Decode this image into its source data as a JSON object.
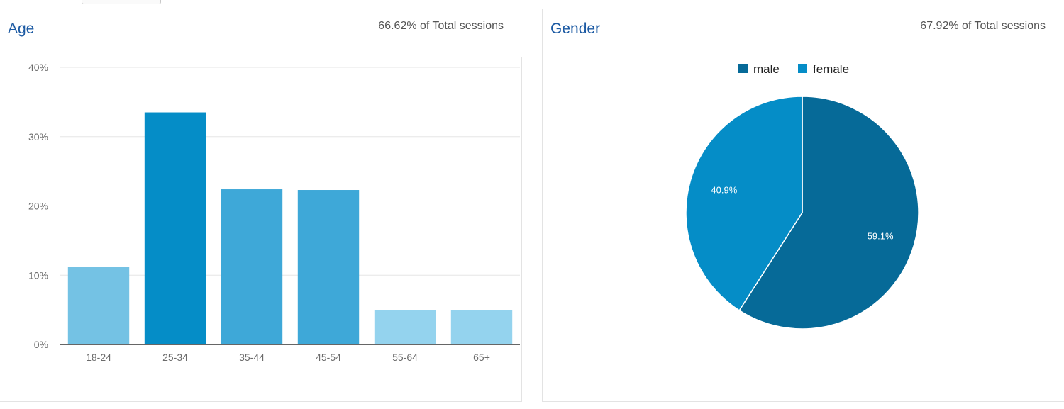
{
  "colors": {
    "title": "#1c5aa3",
    "grid": "#e6e6e6",
    "axis": "#333333",
    "age_bar_shades": [
      "#74c2e4",
      "#058dc7",
      "#3ea8d8",
      "#3ea8d8",
      "#94d3ee",
      "#94d3ee"
    ],
    "male": "#066a98",
    "female": "#058dc7"
  },
  "age_panel": {
    "title": "Age",
    "subtitle": "66.62% of Total sessions"
  },
  "gender_panel": {
    "title": "Gender",
    "subtitle": "67.92% of Total sessions"
  },
  "chart_data": [
    {
      "type": "bar",
      "title": "Age",
      "categories": [
        "18-24",
        "25-34",
        "35-44",
        "45-54",
        "55-64",
        "65+"
      ],
      "values": [
        11.2,
        33.5,
        22.4,
        22.3,
        5.0,
        5.0
      ],
      "value_unit": "%",
      "ylim": [
        0,
        40
      ],
      "yticks": [
        "0%",
        "10%",
        "20%",
        "30%",
        "40%"
      ],
      "ytick_values": [
        0,
        10,
        20,
        30,
        40
      ],
      "grid": true,
      "xlabel": "",
      "ylabel": ""
    },
    {
      "type": "pie",
      "title": "Gender",
      "legend_position": "top",
      "slices": [
        {
          "name": "male",
          "value": 59.1,
          "label": "59.1%"
        },
        {
          "name": "female",
          "value": 40.9,
          "label": "40.9%"
        }
      ]
    }
  ]
}
